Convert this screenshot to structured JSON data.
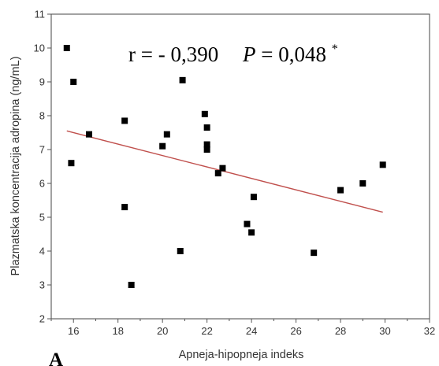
{
  "chart_data": {
    "type": "scatter",
    "panel_label": "A",
    "xlabel": "Apneja-hipopneja indeks",
    "ylabel": "Plazmatska koncentracija adropina (ng/mL)",
    "xlim": [
      15,
      32
    ],
    "ylim": [
      2,
      11
    ],
    "xticks": [
      16,
      18,
      20,
      22,
      24,
      26,
      28,
      30,
      32
    ],
    "yticks": [
      2,
      3,
      4,
      5,
      6,
      7,
      8,
      9,
      10,
      11
    ],
    "grid": false,
    "annotation": {
      "r_text": "r = - 0,390",
      "p_symbol": "P",
      "p_value_text": " = 0,048",
      "p_superscript": "*"
    },
    "points": [
      {
        "x": 15.7,
        "y": 10.0
      },
      {
        "x": 16.0,
        "y": 9.0
      },
      {
        "x": 15.9,
        "y": 6.6
      },
      {
        "x": 16.7,
        "y": 7.45
      },
      {
        "x": 18.3,
        "y": 7.85
      },
      {
        "x": 18.3,
        "y": 5.3
      },
      {
        "x": 18.6,
        "y": 3.0
      },
      {
        "x": 20.0,
        "y": 7.1
      },
      {
        "x": 20.2,
        "y": 7.45
      },
      {
        "x": 20.8,
        "y": 4.0
      },
      {
        "x": 20.9,
        "y": 9.05
      },
      {
        "x": 21.9,
        "y": 8.05
      },
      {
        "x": 22.0,
        "y": 7.65
      },
      {
        "x": 22.0,
        "y": 7.15
      },
      {
        "x": 22.0,
        "y": 7.0
      },
      {
        "x": 22.5,
        "y": 6.3
      },
      {
        "x": 22.7,
        "y": 6.45
      },
      {
        "x": 23.8,
        "y": 4.8
      },
      {
        "x": 24.0,
        "y": 4.55
      },
      {
        "x": 24.1,
        "y": 5.6
      },
      {
        "x": 26.8,
        "y": 3.95
      },
      {
        "x": 28.0,
        "y": 5.8
      },
      {
        "x": 29.0,
        "y": 6.0
      },
      {
        "x": 29.9,
        "y": 6.55
      }
    ],
    "regression_line": {
      "x": [
        15.7,
        29.9
      ],
      "y": [
        7.55,
        5.15
      ],
      "color": "#c0504d"
    },
    "marker_color": "#000000"
  }
}
